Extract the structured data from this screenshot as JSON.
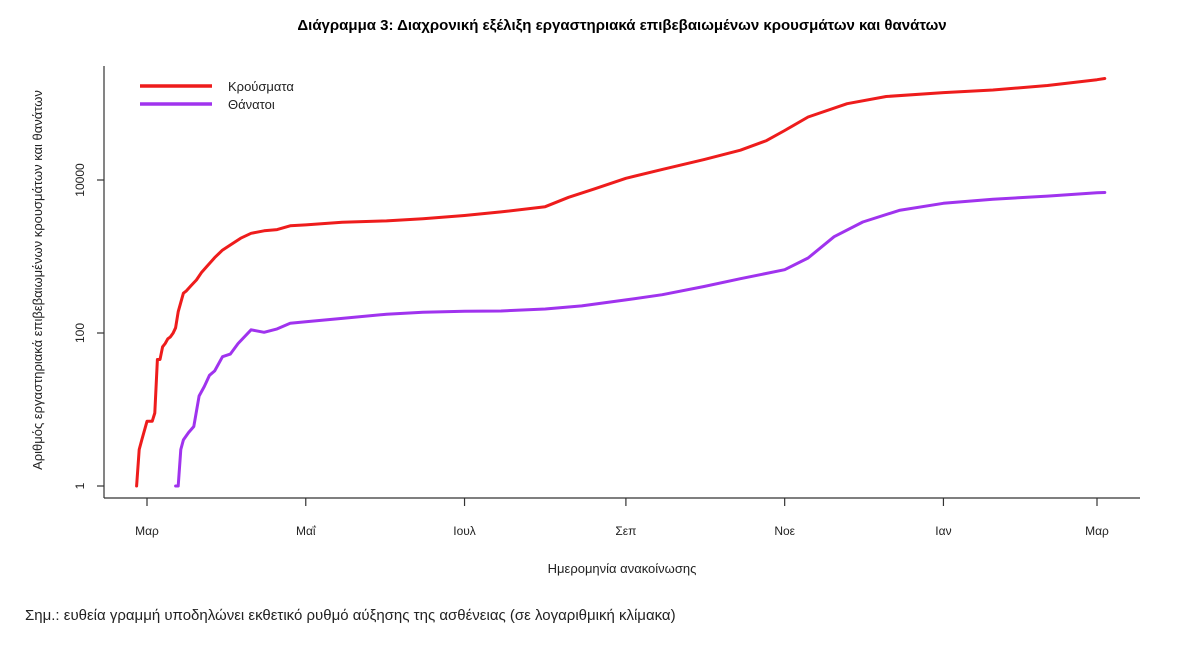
{
  "chart_data": {
    "type": "line",
    "title": "Διάγραμμα 3: Διαχρονική εξέλιξη εργαστηριακά επιβεβαιωμένων κρουσμάτων και θανάτων",
    "xlabel": "Ημερομηνία ανακοίνωσης",
    "ylabel": "Αριθμός εργαστηριακά επιβεβαιωμένων κρουσμάτων και θανάτων",
    "y_scale": "log",
    "ylim": [
      1,
      300000
    ],
    "y_ticks": [
      1,
      100,
      10000
    ],
    "y_tick_labels": [
      "1",
      "100",
      "10000"
    ],
    "xlim": [
      "2020-02-22",
      "2021-03-06"
    ],
    "x_ticks": [
      "2020-03-01",
      "2020-05-01",
      "2020-07-01",
      "2020-09-01",
      "2020-11-01",
      "2021-01-01",
      "2021-03-01"
    ],
    "x_tick_labels": [
      "Μαρ",
      "Μαΐ",
      "Ιουλ",
      "Σεπ",
      "Νοε",
      "Ιαν",
      "Μαρ"
    ],
    "grid": false,
    "legend_position": "top-left",
    "series": [
      {
        "name": "Κρούσματα",
        "color": "#ee1c1c",
        "points": [
          [
            "2020-02-26",
            1
          ],
          [
            "2020-02-27",
            3
          ],
          [
            "2020-02-28",
            4
          ],
          [
            "2020-03-01",
            7
          ],
          [
            "2020-03-03",
            7
          ],
          [
            "2020-03-04",
            9
          ],
          [
            "2020-03-05",
            45
          ],
          [
            "2020-03-06",
            45
          ],
          [
            "2020-03-07",
            66
          ],
          [
            "2020-03-08",
            73
          ],
          [
            "2020-03-09",
            84
          ],
          [
            "2020-03-10",
            89
          ],
          [
            "2020-03-11",
            99
          ],
          [
            "2020-03-12",
            117
          ],
          [
            "2020-03-13",
            190
          ],
          [
            "2020-03-15",
            331
          ],
          [
            "2020-03-16",
            352
          ],
          [
            "2020-03-18",
            418
          ],
          [
            "2020-03-20",
            495
          ],
          [
            "2020-03-22",
            624
          ],
          [
            "2020-03-24",
            743
          ],
          [
            "2020-03-27",
            966
          ],
          [
            "2020-03-30",
            1212
          ],
          [
            "2020-04-02",
            1415
          ],
          [
            "2020-04-06",
            1735
          ],
          [
            "2020-04-10",
            2011
          ],
          [
            "2020-04-15",
            2170
          ],
          [
            "2020-04-20",
            2245
          ],
          [
            "2020-04-25",
            2517
          ],
          [
            "2020-05-01",
            2591
          ],
          [
            "2020-05-15",
            2810
          ],
          [
            "2020-06-01",
            2918
          ],
          [
            "2020-06-15",
            3121
          ],
          [
            "2020-07-01",
            3432
          ],
          [
            "2020-07-15",
            3826
          ],
          [
            "2020-08-01",
            4477
          ],
          [
            "2020-08-10",
            5942
          ],
          [
            "2020-08-20",
            7684
          ],
          [
            "2020-09-01",
            10524
          ],
          [
            "2020-09-15",
            13767
          ],
          [
            "2020-10-01",
            18475
          ],
          [
            "2020-10-15",
            24541
          ],
          [
            "2020-10-25",
            32752
          ],
          [
            "2020-11-01",
            44411
          ],
          [
            "2020-11-10",
            66637
          ],
          [
            "2020-11-25",
            99306
          ],
          [
            "2020-12-10",
            123534
          ],
          [
            "2021-01-01",
            138850
          ],
          [
            "2021-01-20",
            149973
          ],
          [
            "2021-02-10",
            172000
          ],
          [
            "2021-03-01",
            205000
          ],
          [
            "2021-03-04",
            212000
          ]
        ]
      },
      {
        "name": "Θάνατοι",
        "color": "#a033ee",
        "points": [
          [
            "2020-03-12",
            1
          ],
          [
            "2020-03-13",
            1
          ],
          [
            "2020-03-14",
            3
          ],
          [
            "2020-03-15",
            4
          ],
          [
            "2020-03-17",
            5
          ],
          [
            "2020-03-19",
            6
          ],
          [
            "2020-03-21",
            15
          ],
          [
            "2020-03-23",
            20
          ],
          [
            "2020-03-25",
            28
          ],
          [
            "2020-03-27",
            32
          ],
          [
            "2020-03-30",
            49
          ],
          [
            "2020-04-02",
            53
          ],
          [
            "2020-04-05",
            73
          ],
          [
            "2020-04-10",
            110
          ],
          [
            "2020-04-15",
            102
          ],
          [
            "2020-04-20",
            113
          ],
          [
            "2020-04-25",
            134
          ],
          [
            "2020-05-01",
            140
          ],
          [
            "2020-05-15",
            155
          ],
          [
            "2020-06-01",
            176
          ],
          [
            "2020-06-15",
            187
          ],
          [
            "2020-07-01",
            192
          ],
          [
            "2020-07-15",
            194
          ],
          [
            "2020-08-01",
            206
          ],
          [
            "2020-08-15",
            226
          ],
          [
            "2020-09-01",
            271
          ],
          [
            "2020-09-15",
            317
          ],
          [
            "2020-10-01",
            405
          ],
          [
            "2020-10-15",
            512
          ],
          [
            "2020-11-01",
            673
          ],
          [
            "2020-11-10",
            955
          ],
          [
            "2020-11-20",
            1815
          ],
          [
            "2020-12-01",
            2828
          ],
          [
            "2020-12-15",
            4005
          ],
          [
            "2021-01-01",
            4957
          ],
          [
            "2021-01-20",
            5613
          ],
          [
            "2021-02-10",
            6153
          ],
          [
            "2021-03-01",
            6802
          ],
          [
            "2021-03-04",
            6859
          ]
        ]
      }
    ]
  },
  "footnote": "Σημ.: ευθεία γραμμή υποδηλώνει εκθετικό ρυθμό αύξησης της ασθένειας (σε λογαριθμική κλίμακα)"
}
